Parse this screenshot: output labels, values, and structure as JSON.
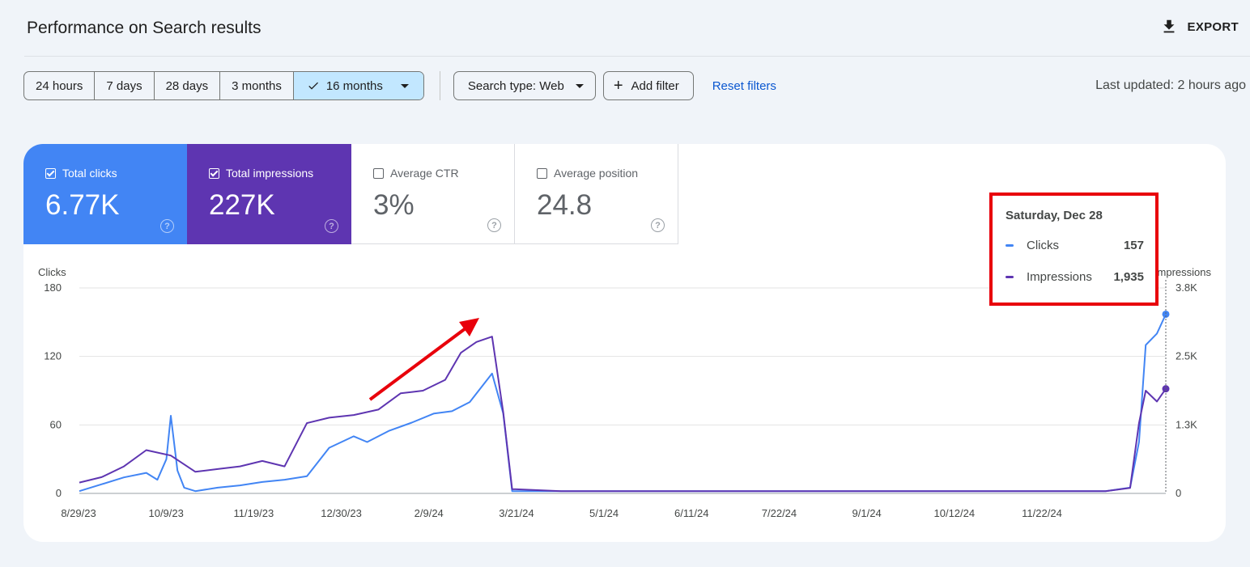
{
  "page": {
    "title": "Performance on Search results",
    "export_label": "EXPORT",
    "last_updated": "Last updated: 2 hours ago"
  },
  "toolbar": {
    "ranges": [
      "24 hours",
      "7 days",
      "28 days",
      "3 months",
      "16 months"
    ],
    "active_range": "16 months",
    "search_type": "Search type: Web",
    "add_filter": "Add filter",
    "reset_filters": "Reset filters"
  },
  "metrics": {
    "clicks": {
      "label": "Total clicks",
      "value": "6.77K",
      "checked": true,
      "color": "#4285f4"
    },
    "impressions": {
      "label": "Total impressions",
      "value": "227K",
      "checked": true,
      "color": "#5e35b1"
    },
    "ctr": {
      "label": "Average CTR",
      "value": "3%",
      "checked": false
    },
    "position": {
      "label": "Average position",
      "value": "24.8",
      "checked": false
    }
  },
  "tooltip": {
    "date": "Saturday, Dec 28",
    "rows": [
      {
        "name": "Clicks",
        "value": "157",
        "color": "#4285f4"
      },
      {
        "name": "Impressions",
        "value": "1,935",
        "color": "#5e35b1"
      }
    ]
  },
  "chart_data": {
    "type": "line",
    "y_left": {
      "label": "Clicks",
      "ticks": [
        "180",
        "120",
        "60",
        "0"
      ],
      "range": [
        0,
        180
      ]
    },
    "y_right": {
      "label": "Impressions",
      "ticks": [
        "3.8K",
        "2.5K",
        "1.3K",
        "0"
      ],
      "range": [
        0,
        3800
      ]
    },
    "x_ticks": [
      "8/29/23",
      "10/9/23",
      "11/19/23",
      "12/30/23",
      "2/9/24",
      "3/21/24",
      "5/1/24",
      "6/11/24",
      "7/22/24",
      "9/1/24",
      "10/12/24",
      "11/22/24"
    ],
    "x_range": [
      "2023-08-29",
      "2024-12-28"
    ],
    "grid": true,
    "series": [
      {
        "name": "Clicks",
        "axis": "left",
        "color": "#4285f4",
        "points": [
          [
            "2023-08-29",
            2
          ],
          [
            "2023-09-08",
            8
          ],
          [
            "2023-09-18",
            14
          ],
          [
            "2023-09-28",
            18
          ],
          [
            "2023-10-03",
            12
          ],
          [
            "2023-10-07",
            30
          ],
          [
            "2023-10-09",
            68
          ],
          [
            "2023-10-12",
            20
          ],
          [
            "2023-10-15",
            5
          ],
          [
            "2023-10-20",
            2
          ],
          [
            "2023-10-30",
            5
          ],
          [
            "2023-11-09",
            7
          ],
          [
            "2023-11-19",
            10
          ],
          [
            "2023-11-29",
            12
          ],
          [
            "2023-12-09",
            15
          ],
          [
            "2023-12-19",
            40
          ],
          [
            "2023-12-30",
            50
          ],
          [
            "2024-01-05",
            45
          ],
          [
            "2024-01-15",
            55
          ],
          [
            "2024-01-25",
            62
          ],
          [
            "2024-02-04",
            70
          ],
          [
            "2024-02-12",
            72
          ],
          [
            "2024-02-20",
            80
          ],
          [
            "2024-03-01",
            105
          ],
          [
            "2024-03-06",
            70
          ],
          [
            "2024-03-10",
            2
          ],
          [
            "2024-04-01",
            2
          ],
          [
            "2024-06-01",
            2
          ],
          [
            "2024-08-01",
            2
          ],
          [
            "2024-10-01",
            2
          ],
          [
            "2024-12-01",
            2
          ],
          [
            "2024-12-12",
            5
          ],
          [
            "2024-12-16",
            45
          ],
          [
            "2024-12-19",
            130
          ],
          [
            "2024-12-24",
            140
          ],
          [
            "2024-12-28",
            157
          ]
        ]
      },
      {
        "name": "Impressions",
        "axis": "right",
        "color": "#5e35b1",
        "points": [
          [
            "2023-08-29",
            200
          ],
          [
            "2023-09-08",
            300
          ],
          [
            "2023-09-18",
            500
          ],
          [
            "2023-09-28",
            800
          ],
          [
            "2023-10-09",
            700
          ],
          [
            "2023-10-20",
            400
          ],
          [
            "2023-10-30",
            450
          ],
          [
            "2023-11-09",
            500
          ],
          [
            "2023-11-19",
            600
          ],
          [
            "2023-11-29",
            500
          ],
          [
            "2023-12-09",
            1300
          ],
          [
            "2023-12-19",
            1400
          ],
          [
            "2023-12-30",
            1450
          ],
          [
            "2024-01-10",
            1550
          ],
          [
            "2024-01-20",
            1850
          ],
          [
            "2024-01-30",
            1900
          ],
          [
            "2024-02-09",
            2100
          ],
          [
            "2024-02-16",
            2600
          ],
          [
            "2024-02-23",
            2800
          ],
          [
            "2024-03-01",
            2900
          ],
          [
            "2024-03-06",
            1500
          ],
          [
            "2024-03-10",
            80
          ],
          [
            "2024-04-01",
            40
          ],
          [
            "2024-06-01",
            40
          ],
          [
            "2024-08-01",
            40
          ],
          [
            "2024-10-01",
            40
          ],
          [
            "2024-12-01",
            40
          ],
          [
            "2024-12-12",
            100
          ],
          [
            "2024-12-16",
            1300
          ],
          [
            "2024-12-19",
            1900
          ],
          [
            "2024-12-24",
            1700
          ],
          [
            "2024-12-28",
            1935
          ]
        ]
      }
    ]
  }
}
